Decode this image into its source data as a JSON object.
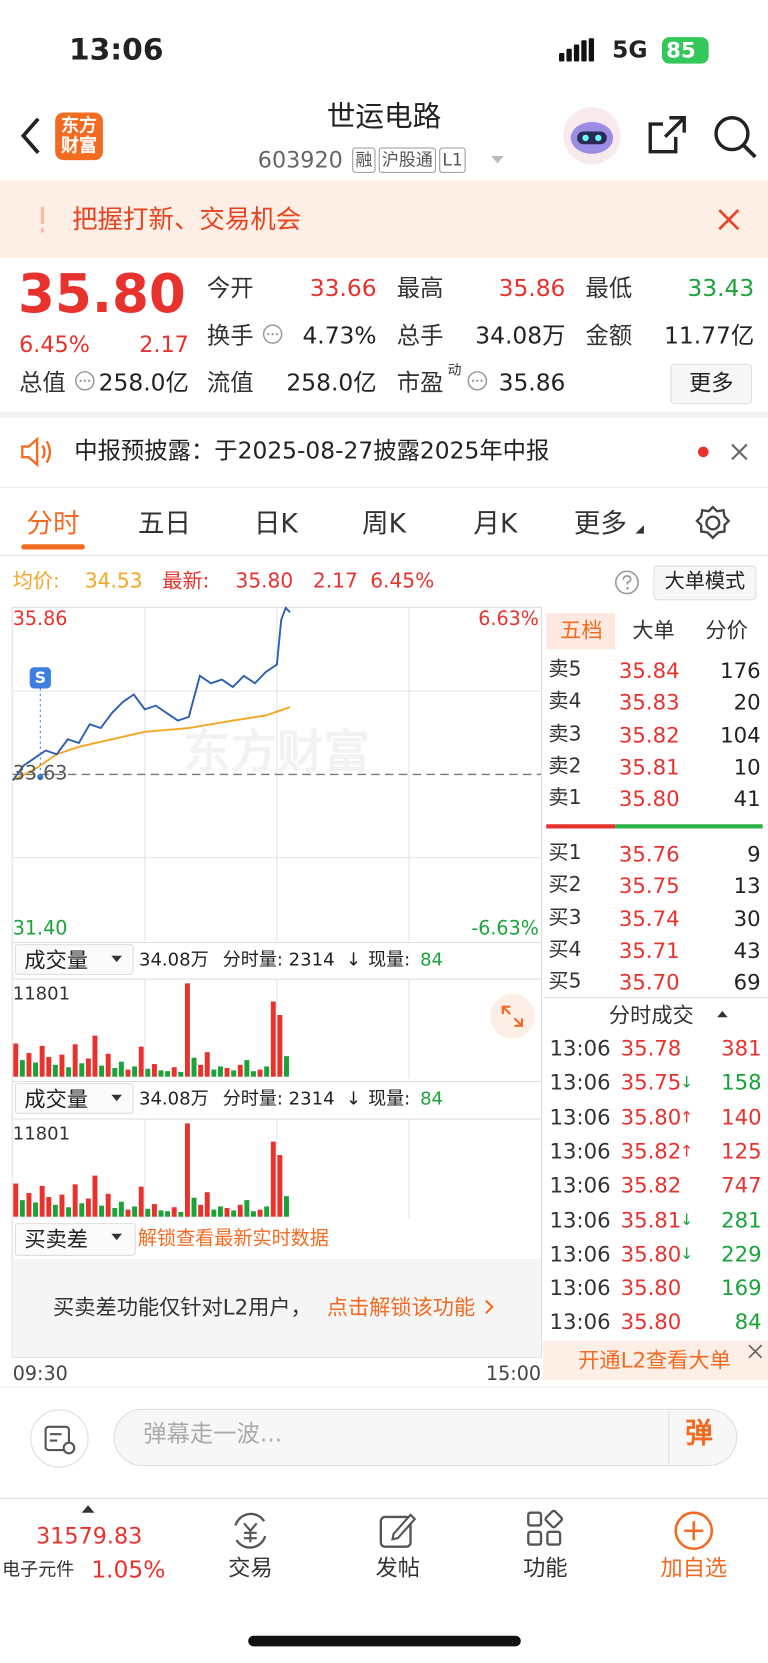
{
  "status": {
    "time": "13:06",
    "network": "5G",
    "battery": "85"
  },
  "header": {
    "logo": "东方财富",
    "title": "世运电路",
    "code": "603920",
    "tags": [
      "融",
      "沪股通",
      "L1"
    ]
  },
  "banner": {
    "text": "把握打新、交易机会"
  },
  "quote": {
    "price": "35.80",
    "change_pct": "6.45%",
    "change": "2.17",
    "fields": [
      {
        "label": "今开",
        "value": "33.66",
        "color": "#e8322e"
      },
      {
        "label": "最高",
        "value": "35.86",
        "color": "#e8322e"
      },
      {
        "label": "最低",
        "value": "33.43",
        "color": "#1aa33a"
      },
      {
        "label": "换手",
        "value": "4.73%"
      },
      {
        "label": "总手",
        "value": "34.08万"
      },
      {
        "label": "金额",
        "value": "11.77亿"
      },
      {
        "label": "总值",
        "value": "258.0亿"
      },
      {
        "label": "流值",
        "value": "258.0亿"
      },
      {
        "label": "市盈",
        "sup": "动",
        "value": "35.86"
      }
    ],
    "more": "更多"
  },
  "notice": {
    "text": "中报预披露：于2025-08-27披露2025年中报"
  },
  "tabs": {
    "items": [
      "分时",
      "五日",
      "日K",
      "周K",
      "月K",
      "更多"
    ],
    "active": 0
  },
  "summary": {
    "avg_label": "均价:",
    "avg": "34.53",
    "latest_label": "最新:",
    "latest": "35.80",
    "change": "2.17",
    "change_pct": "6.45%",
    "mode_button": "大单模式"
  },
  "intraday": {
    "watermark": "东方财富",
    "marker": "S",
    "xlim": [
      0,
      240
    ],
    "price_axis": {
      "top": {
        "value": 35.86,
        "label": "35.86"
      },
      "mid": {
        "value": 33.63,
        "label": "33.63"
      },
      "bottom": {
        "value": 31.4,
        "label": "31.40"
      }
    },
    "pct_top": "6.63%",
    "pct_bottom": "-6.63%",
    "x": [
      0,
      5,
      10,
      15,
      20,
      25,
      30,
      35,
      40,
      45,
      50,
      55,
      60,
      65,
      70,
      75,
      80,
      85,
      90,
      95,
      100,
      105,
      110,
      115,
      120,
      122,
      124,
      126
    ],
    "price": [
      33.55,
      33.75,
      33.85,
      33.95,
      33.9,
      34.1,
      34.05,
      34.3,
      34.25,
      34.45,
      34.6,
      34.7,
      34.5,
      34.55,
      34.45,
      34.35,
      34.4,
      34.95,
      34.85,
      34.9,
      34.8,
      34.95,
      34.85,
      35.0,
      35.1,
      35.7,
      35.86,
      35.8
    ],
    "avg_x": [
      0,
      10,
      20,
      30,
      45,
      60,
      80,
      100,
      115,
      126
    ],
    "avg": [
      33.55,
      33.7,
      33.9,
      34.0,
      34.1,
      34.2,
      34.25,
      34.35,
      34.42,
      34.53
    ],
    "price_color": "#2f5fb3",
    "avg_color": "#f5a623",
    "start": "09:30",
    "end": "15:00"
  },
  "volume": {
    "label": "成交量",
    "total": "34.08万",
    "minute_volume": "分时量: 2314",
    "arrow": "↓",
    "current_label": "现量:",
    "current": "84",
    "ymax": 11801,
    "x": [
      0,
      3,
      6,
      9,
      12,
      15,
      18,
      21,
      24,
      27,
      30,
      33,
      36,
      39,
      42,
      45,
      48,
      51,
      54,
      57,
      60,
      63,
      66,
      69,
      72,
      75,
      78,
      81,
      84,
      87,
      90,
      93,
      96,
      99,
      102,
      105,
      108,
      111,
      114,
      117,
      120,
      123
    ],
    "values": [
      4200,
      2100,
      3000,
      1800,
      3900,
      2500,
      1500,
      2800,
      1200,
      4100,
      1700,
      2300,
      5200,
      1400,
      2900,
      1100,
      1900,
      900,
      1300,
      3800,
      1000,
      1600,
      800,
      700,
      1200,
      600,
      11801,
      2400,
      1500,
      3100,
      900,
      1300,
      1100,
      800,
      1500,
      2100,
      700,
      900,
      1300,
      9500,
      7800,
      2600
    ],
    "up": [
      true,
      false,
      true,
      false,
      true,
      true,
      false,
      true,
      false,
      true,
      false,
      true,
      true,
      false,
      true,
      false,
      false,
      true,
      false,
      true,
      false,
      true,
      false,
      false,
      true,
      false,
      true,
      false,
      true,
      true,
      false,
      false,
      true,
      false,
      true,
      false,
      false,
      true,
      false,
      true,
      true,
      false
    ]
  },
  "diff": {
    "label": "买卖差",
    "unlock": "解锁查看最新实时数据",
    "note": "买卖差功能仅针对L2用户，",
    "link": "点击解锁该功能"
  },
  "order_book": {
    "tabs": [
      "五档",
      "大单",
      "分价"
    ],
    "sell": [
      {
        "label": "卖5",
        "price": "35.84",
        "volume": "176"
      },
      {
        "label": "卖4",
        "price": "35.83",
        "volume": "20"
      },
      {
        "label": "卖3",
        "price": "35.82",
        "volume": "104"
      },
      {
        "label": "卖2",
        "price": "35.81",
        "volume": "10"
      },
      {
        "label": "卖1",
        "price": "35.80",
        "volume": "41"
      }
    ],
    "buy": [
      {
        "label": "买1",
        "price": "35.76",
        "volume": "9"
      },
      {
        "label": "买2",
        "price": "35.75",
        "volume": "13"
      },
      {
        "label": "买3",
        "price": "35.74",
        "volume": "30"
      },
      {
        "label": "买4",
        "price": "35.71",
        "volume": "43"
      },
      {
        "label": "买5",
        "price": "35.70",
        "volume": "69"
      }
    ]
  },
  "trades": {
    "title": "分时成交",
    "footer": "开通L2查看大单",
    "rows": [
      {
        "time": "13:06",
        "price": "35.78",
        "volume": "381",
        "color": "#e8322e"
      },
      {
        "time": "13:06",
        "price": "35.75",
        "arrow": "↓",
        "volume": "158",
        "color": "#1aa33a"
      },
      {
        "time": "13:06",
        "price": "35.80",
        "arrow": "↑",
        "volume": "140",
        "color": "#e8322e"
      },
      {
        "time": "13:06",
        "price": "35.82",
        "arrow": "↑",
        "volume": "125",
        "color": "#e8322e"
      },
      {
        "time": "13:06",
        "price": "35.82",
        "volume": "747",
        "color": "#e8322e"
      },
      {
        "time": "13:06",
        "price": "35.81",
        "arrow": "↓",
        "volume": "281",
        "color": "#1aa33a"
      },
      {
        "time": "13:06",
        "price": "35.80",
        "arrow": "↓",
        "volume": "229",
        "color": "#1aa33a"
      },
      {
        "time": "13:06",
        "price": "35.80",
        "volume": "169",
        "color": "#1aa33a"
      },
      {
        "time": "13:06",
        "price": "35.80",
        "volume": "84",
        "color": "#1aa33a"
      }
    ]
  },
  "comment": {
    "placeholder": "弹幕走一波...",
    "button": "弹"
  },
  "nav": {
    "index_value": "31579.83",
    "index_name": "电子元件",
    "index_pct": "1.05%",
    "items": [
      "交易",
      "发帖",
      "功能",
      "加自选"
    ]
  }
}
